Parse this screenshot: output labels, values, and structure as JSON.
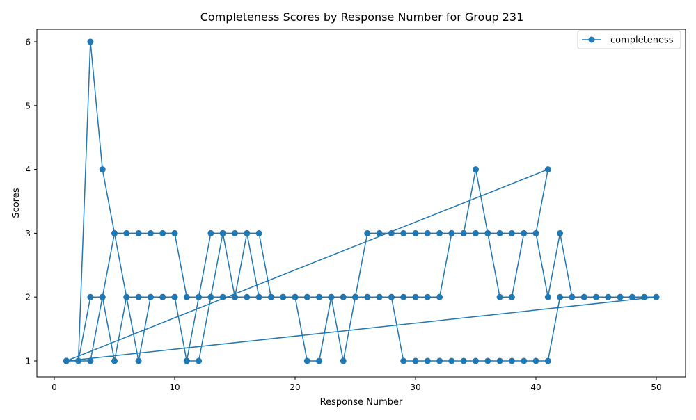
{
  "chart_data": {
    "type": "line",
    "title": "Completeness Scores by Response Number for Group 231",
    "xlabel": "Response Number",
    "ylabel": "Scores",
    "xlim": [
      0,
      50
    ],
    "ylim": [
      1,
      6
    ],
    "xticks": [
      0,
      10,
      20,
      30,
      40,
      50
    ],
    "yticks": [
      1,
      2,
      3,
      4,
      5,
      6
    ],
    "grid": false,
    "legend_position": "top-right",
    "series": [
      {
        "name": "completeness",
        "color": "#1f77b4",
        "marker": "circle",
        "points": [
          [
            1,
            1
          ],
          [
            2,
            1
          ],
          [
            3,
            2
          ],
          [
            4,
            2
          ],
          [
            5,
            3
          ],
          [
            6,
            3
          ],
          [
            7,
            3
          ],
          [
            8,
            3
          ],
          [
            9,
            3
          ],
          [
            10,
            3
          ],
          [
            11,
            2
          ],
          [
            12,
            2
          ],
          [
            13,
            3
          ],
          [
            14,
            3
          ],
          [
            15,
            3
          ],
          [
            16,
            3
          ],
          [
            17,
            3
          ],
          [
            18,
            2
          ],
          [
            19,
            2
          ],
          [
            20,
            2
          ],
          [
            21,
            2
          ],
          [
            22,
            2
          ],
          [
            23,
            2
          ],
          [
            24,
            2
          ],
          [
            25,
            2
          ],
          [
            26,
            3
          ],
          [
            27,
            3
          ],
          [
            28,
            3
          ],
          [
            29,
            3
          ],
          [
            30,
            3
          ],
          [
            31,
            3
          ],
          [
            32,
            3
          ],
          [
            33,
            3
          ],
          [
            34,
            3
          ],
          [
            35,
            4
          ],
          [
            36,
            3
          ],
          [
            37,
            3
          ],
          [
            38,
            3
          ],
          [
            39,
            3
          ],
          [
            40,
            3
          ],
          [
            41,
            4
          ],
          [
            1,
            1
          ],
          [
            2,
            1
          ],
          [
            3,
            6
          ],
          [
            4,
            4
          ],
          [
            5,
            3
          ],
          [
            6,
            2
          ],
          [
            7,
            2
          ],
          [
            8,
            2
          ],
          [
            9,
            2
          ],
          [
            10,
            2
          ],
          [
            11,
            1
          ],
          [
            12,
            2
          ],
          [
            13,
            2
          ],
          [
            14,
            3
          ],
          [
            15,
            2
          ],
          [
            16,
            2
          ],
          [
            17,
            2
          ],
          [
            18,
            2
          ],
          [
            19,
            2
          ],
          [
            20,
            2
          ],
          [
            21,
            2
          ],
          [
            22,
            2
          ],
          [
            23,
            2
          ],
          [
            24,
            1
          ],
          [
            25,
            2
          ],
          [
            26,
            2
          ],
          [
            27,
            2
          ],
          [
            28,
            2
          ],
          [
            29,
            2
          ],
          [
            30,
            2
          ],
          [
            31,
            2
          ],
          [
            32,
            2
          ],
          [
            33,
            3
          ],
          [
            34,
            3
          ],
          [
            35,
            3
          ],
          [
            36,
            3
          ],
          [
            37,
            2
          ],
          [
            38,
            2
          ],
          [
            39,
            3
          ],
          [
            40,
            3
          ],
          [
            41,
            2
          ],
          [
            42,
            3
          ],
          [
            43,
            2
          ],
          [
            44,
            2
          ],
          [
            45,
            2
          ],
          [
            46,
            2
          ],
          [
            47,
            2
          ],
          [
            48,
            2
          ],
          [
            49,
            2
          ],
          [
            50,
            2
          ],
          [
            1,
            1
          ],
          [
            2,
            1
          ],
          [
            3,
            1
          ],
          [
            4,
            2
          ],
          [
            5,
            1
          ],
          [
            6,
            2
          ],
          [
            7,
            1
          ],
          [
            8,
            2
          ],
          [
            9,
            2
          ],
          [
            10,
            2
          ],
          [
            11,
            1
          ],
          [
            12,
            1
          ],
          [
            13,
            2
          ],
          [
            14,
            2
          ],
          [
            15,
            2
          ],
          [
            16,
            3
          ],
          [
            17,
            2
          ],
          [
            18,
            2
          ],
          [
            19,
            2
          ],
          [
            20,
            2
          ],
          [
            21,
            1
          ],
          [
            22,
            1
          ],
          [
            23,
            2
          ],
          [
            24,
            2
          ],
          [
            25,
            2
          ],
          [
            26,
            2
          ],
          [
            27,
            2
          ],
          [
            28,
            2
          ],
          [
            29,
            1
          ],
          [
            30,
            1
          ],
          [
            31,
            1
          ],
          [
            32,
            1
          ],
          [
            33,
            1
          ],
          [
            34,
            1
          ],
          [
            35,
            1
          ],
          [
            36,
            1
          ],
          [
            37,
            1
          ],
          [
            38,
            1
          ],
          [
            39,
            1
          ],
          [
            40,
            1
          ],
          [
            41,
            1
          ],
          [
            42,
            2
          ],
          [
            43,
            2
          ],
          [
            44,
            2
          ],
          [
            45,
            2
          ],
          [
            46,
            2
          ],
          [
            47,
            2
          ],
          [
            48,
            2
          ],
          [
            49,
            2
          ],
          [
            50,
            2
          ]
        ]
      }
    ]
  }
}
